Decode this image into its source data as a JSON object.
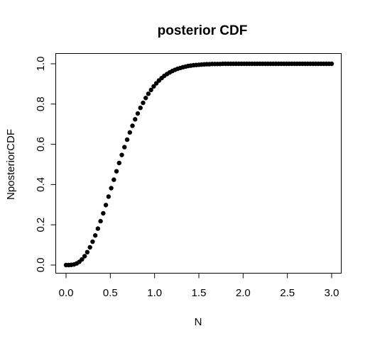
{
  "chart_data": {
    "type": "scatter",
    "title": "posterior CDF",
    "xlabel": "N",
    "ylabel": "NposteriorCDF",
    "xlim": [
      0,
      3
    ],
    "ylim": [
      0,
      1
    ],
    "x_ticks": [
      "0.0",
      "0.5",
      "1.0",
      "1.5",
      "2.0",
      "2.5",
      "3.0"
    ],
    "y_ticks": [
      "0.0",
      "0.2",
      "0.4",
      "0.6",
      "0.8",
      "1.0"
    ],
    "grid": false,
    "point_color": "#000000",
    "series": [
      {
        "x": [
          0.0,
          0.03,
          0.06,
          0.09,
          0.12,
          0.15,
          0.18,
          0.21,
          0.24,
          0.27,
          0.3,
          0.33,
          0.36,
          0.39,
          0.42,
          0.45,
          0.48,
          0.51,
          0.54,
          0.57,
          0.6,
          0.63,
          0.66,
          0.69,
          0.72,
          0.75,
          0.78,
          0.81,
          0.84,
          0.87,
          0.9,
          0.93,
          0.96,
          0.99,
          1.02,
          1.05,
          1.08,
          1.11,
          1.14,
          1.17,
          1.2,
          1.23,
          1.26,
          1.29,
          1.32,
          1.35,
          1.38,
          1.41,
          1.44,
          1.47,
          1.5,
          1.53,
          1.56,
          1.59,
          1.62,
          1.65,
          1.68,
          1.71,
          1.74,
          1.77,
          1.8,
          1.83,
          1.86,
          1.89,
          1.92,
          1.95,
          1.98,
          2.01,
          2.04,
          2.07,
          2.1,
          2.13,
          2.16,
          2.19,
          2.22,
          2.25,
          2.28,
          2.31,
          2.34,
          2.37,
          2.4,
          2.43,
          2.46,
          2.49,
          2.52,
          2.55,
          2.58,
          2.61,
          2.64,
          2.67,
          2.7,
          2.73,
          2.76,
          2.79,
          2.82,
          2.85,
          2.88,
          2.91,
          2.94,
          2.97,
          3.0
        ],
        "y": [
          0.0,
          0.0,
          0.001,
          0.003,
          0.008,
          0.016,
          0.028,
          0.044,
          0.064,
          0.088,
          0.116,
          0.147,
          0.181,
          0.218,
          0.257,
          0.298,
          0.34,
          0.382,
          0.424,
          0.466,
          0.507,
          0.547,
          0.586,
          0.623,
          0.659,
          0.692,
          0.724,
          0.753,
          0.781,
          0.806,
          0.83,
          0.851,
          0.87,
          0.888,
          0.903,
          0.917,
          0.929,
          0.94,
          0.949,
          0.957,
          0.964,
          0.97,
          0.975,
          0.979,
          0.983,
          0.986,
          0.989,
          0.991,
          0.993,
          0.994,
          0.995,
          0.996,
          0.997,
          0.998,
          0.998,
          0.999,
          0.999,
          0.999,
          0.999,
          1.0,
          1.0,
          1.0,
          1.0,
          1.0,
          1.0,
          1.0,
          1.0,
          1.0,
          1.0,
          1.0,
          1.0,
          1.0,
          1.0,
          1.0,
          1.0,
          1.0,
          1.0,
          1.0,
          1.0,
          1.0,
          1.0,
          1.0,
          1.0,
          1.0,
          1.0,
          1.0,
          1.0,
          1.0,
          1.0,
          1.0,
          1.0,
          1.0,
          1.0,
          1.0,
          1.0,
          1.0,
          1.0,
          1.0,
          1.0,
          1.0,
          1.0
        ]
      }
    ]
  }
}
